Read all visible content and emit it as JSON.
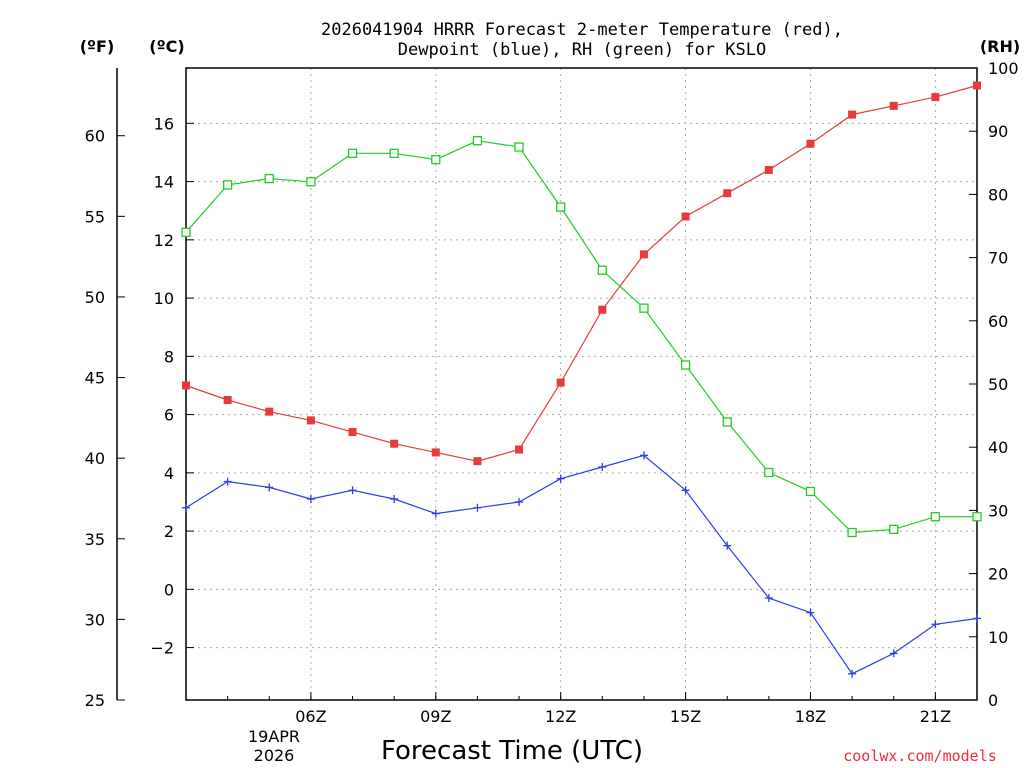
{
  "chart_data": {
    "type": "line",
    "title": [
      "2026041904 HRRR Forecast 2-meter Temperature (red),",
      "Dewpoint (blue), RH (green) for KSLO"
    ],
    "xlabel": "Forecast Time (UTC)",
    "date_label": [
      "19APR",
      "2026"
    ],
    "credit": "coolwx.com/models",
    "units": {
      "fahrenheit": "(ºF)",
      "celsius": "(ºC)",
      "rh": "(RH)"
    },
    "x_range_hours": [
      3,
      22
    ],
    "x_ticks": [
      {
        "hour": 6,
        "label": "06Z"
      },
      {
        "hour": 9,
        "label": "09Z"
      },
      {
        "hour": 12,
        "label": "12Z"
      },
      {
        "hour": 15,
        "label": "15Z"
      },
      {
        "hour": 18,
        "label": "18Z"
      },
      {
        "hour": 21,
        "label": "21Z"
      }
    ],
    "celsius_axis": {
      "min": -3.8,
      "max": 17.9,
      "ticks": [
        "-2",
        "0",
        "2",
        "4",
        "6",
        "8",
        "10",
        "12",
        "14",
        "16"
      ]
    },
    "fahrenheit_axis": {
      "min": 25,
      "max": 64.2,
      "ticks": [
        "25",
        "30",
        "35",
        "40",
        "45",
        "50",
        "55",
        "60"
      ]
    },
    "rh_axis": {
      "min": 0,
      "max": 100,
      "ticks": [
        "0",
        "10",
        "20",
        "30",
        "40",
        "50",
        "60",
        "70",
        "80",
        "90",
        "100"
      ]
    },
    "hours": [
      3,
      4,
      5,
      6,
      7,
      8,
      9,
      10,
      11,
      12,
      13,
      14,
      15,
      16,
      17,
      18,
      19,
      20,
      21,
      22
    ],
    "series": [
      {
        "name": "Temperature",
        "axis": "celsius",
        "color": "#e83a3a",
        "marker": "filled-square",
        "values": [
          7.0,
          6.5,
          6.1,
          5.8,
          5.4,
          5.0,
          4.7,
          4.4,
          4.8,
          7.1,
          9.6,
          11.5,
          12.8,
          13.6,
          14.4,
          15.3,
          16.3,
          16.6,
          16.9,
          17.3
        ]
      },
      {
        "name": "Dewpoint",
        "axis": "celsius",
        "color": "#2a3ee8",
        "marker": "plus",
        "values": [
          2.8,
          3.7,
          3.5,
          3.1,
          3.4,
          3.1,
          2.6,
          2.8,
          3.0,
          3.8,
          4.2,
          4.6,
          3.4,
          1.5,
          -0.3,
          -0.8,
          -2.9,
          -2.2,
          -1.2,
          -1.0
        ]
      },
      {
        "name": "RH",
        "axis": "rh",
        "color": "#22cc22",
        "marker": "open-square",
        "values": [
          74,
          81.5,
          82.5,
          82,
          86.5,
          86.5,
          85.5,
          88.5,
          87.5,
          78,
          68,
          62,
          53,
          44,
          36,
          33,
          26.5,
          27,
          29,
          29
        ]
      }
    ]
  }
}
